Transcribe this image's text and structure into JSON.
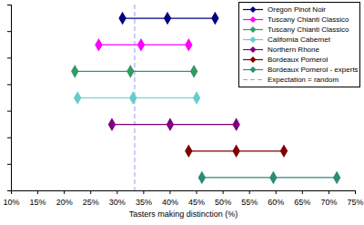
{
  "chart_data": {
    "type": "interval",
    "xlabel": "Tasters making distinction (%)",
    "xlim": [
      10,
      75
    ],
    "xticks": [
      {
        "value": 10,
        "label": "10%"
      },
      {
        "value": 15,
        "label": "15%"
      },
      {
        "value": 20,
        "label": "20%"
      },
      {
        "value": 25,
        "label": "25%"
      },
      {
        "value": 30,
        "label": "30%"
      },
      {
        "value": 35,
        "label": "35%"
      },
      {
        "value": 40,
        "label": "40%"
      },
      {
        "value": 45,
        "label": "45%"
      },
      {
        "value": 50,
        "label": "50%"
      },
      {
        "value": 55,
        "label": "55%"
      },
      {
        "value": 60,
        "label": "60%"
      },
      {
        "value": 65,
        "label": "65%"
      },
      {
        "value": 70,
        "label": "70%"
      },
      {
        "value": 75,
        "label": "75%"
      }
    ],
    "grid": false,
    "tick_labels": "x",
    "legend": "top-right",
    "marker": "diamond",
    "series": [
      {
        "name": "Oregon Pinot Noir",
        "color": "#000080",
        "values": [
          31,
          39.5,
          48.5
        ]
      },
      {
        "name": "Tuscany Chianti Classico",
        "color": "#ff00ff",
        "values": [
          26.5,
          34.5,
          43.5
        ]
      },
      {
        "name": "Tuscany Chianti Classico",
        "color": "#339966",
        "values": [
          22,
          32.5,
          44.5
        ]
      },
      {
        "name": "California Cabernet",
        "color": "#66cccc",
        "values": [
          22.5,
          33,
          45
        ]
      },
      {
        "name": "Northern Rhone",
        "color": "#800080",
        "values": [
          29,
          40,
          52.5
        ]
      },
      {
        "name": "Bordeaux Pomerol",
        "color": "#800000",
        "values": [
          43.5,
          52.5,
          61.5
        ]
      },
      {
        "name": "Bordeaux Pomerol - experts",
        "color": "#2e8b78",
        "values": [
          46,
          59.5,
          71.5
        ]
      }
    ],
    "reference_line": {
      "name": "Expectation = random",
      "value": 33.3,
      "color": "#9999ff",
      "line_style": "dashed"
    }
  }
}
